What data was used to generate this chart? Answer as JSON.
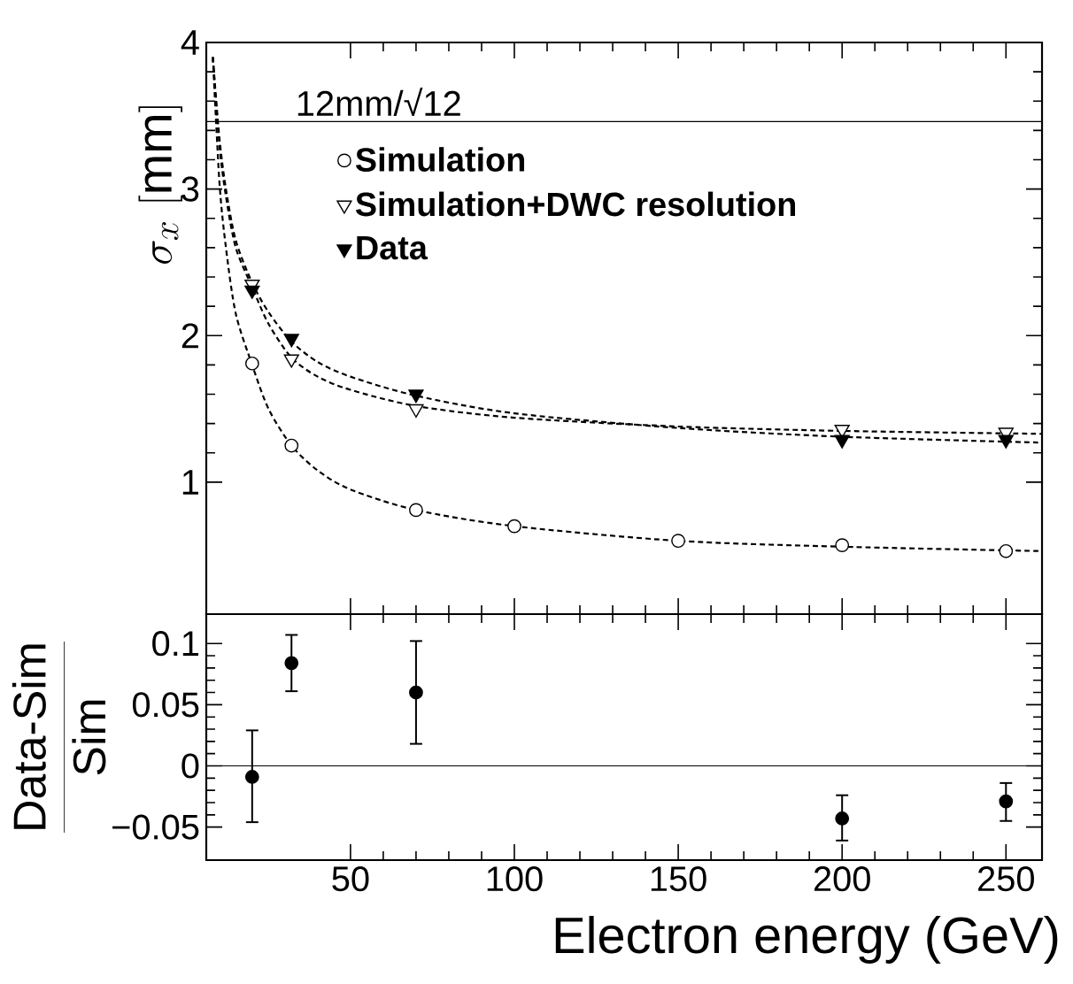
{
  "chart_data": [
    {
      "type": "scatter",
      "xlim": [
        6,
        261
      ],
      "ylim": [
        0.1,
        4
      ],
      "xticks": [
        50,
        100,
        150,
        200,
        250
      ],
      "yticks": [
        1,
        2,
        3,
        4
      ],
      "ylabel": "\\sigma_{x}\\ [\\mathrm{mm}]",
      "tick_labels": "y",
      "legend": "top",
      "ref_lines": [
        {
          "axis": "y",
          "value": 3.46,
          "label": "12mm/√12"
        }
      ],
      "series": [
        {
          "name": "Simulation",
          "marker": "circle",
          "color": "#ffffff",
          "x": [
            20,
            32,
            70,
            100,
            150,
            200,
            250
          ],
          "values": [
            1.81,
            1.25,
            0.81,
            0.7,
            0.6,
            0.57,
            0.53
          ]
        },
        {
          "name": "Simulation+DWC resolution",
          "marker": "triangle",
          "color": "#ffffff",
          "x": [
            20,
            32,
            70,
            200,
            250
          ],
          "values": [
            2.35,
            1.84,
            1.5,
            1.36,
            1.34
          ]
        },
        {
          "name": "Data",
          "marker": "triangle",
          "color": "#000000",
          "x": [
            20,
            32,
            70,
            200,
            250
          ],
          "values": [
            2.31,
            1.98,
            1.6,
            1.29,
            1.29
          ]
        },
        {
          "type": "line",
          "line_style": "dashed",
          "marker": "none",
          "color": "#000000",
          "x": [
            8,
            10,
            12,
            15,
            20,
            25,
            32,
            40,
            50,
            70,
            100,
            150,
            200,
            261
          ],
          "values": [
            3.9,
            3.05,
            2.6,
            2.15,
            1.8,
            1.5,
            1.25,
            1.08,
            0.95,
            0.81,
            0.7,
            0.6,
            0.56,
            0.53
          ]
        },
        {
          "type": "line",
          "line_style": "dashed",
          "marker": "none",
          "color": "#000000",
          "x": [
            8,
            10,
            12,
            15,
            20,
            25,
            32,
            40,
            50,
            70,
            100,
            150,
            200,
            261
          ],
          "values": [
            3.9,
            3.3,
            2.95,
            2.6,
            2.33,
            2.08,
            1.85,
            1.72,
            1.63,
            1.52,
            1.44,
            1.38,
            1.35,
            1.33
          ]
        },
        {
          "type": "line",
          "line_style": "dashed",
          "marker": "none",
          "color": "#000000",
          "x": [
            8,
            10,
            12,
            15,
            20,
            25,
            32,
            40,
            50,
            70,
            100,
            150,
            200,
            261
          ],
          "values": [
            3.9,
            3.35,
            3.0,
            2.65,
            2.36,
            2.16,
            1.96,
            1.82,
            1.72,
            1.59,
            1.47,
            1.37,
            1.31,
            1.27
          ]
        }
      ]
    },
    {
      "type": "scatter",
      "xlim": [
        6,
        261
      ],
      "ylim": [
        -0.077,
        0.124
      ],
      "xticks": [
        50,
        100,
        150,
        200,
        250
      ],
      "yticks": [
        {
          "value": -0.05,
          "label": "−0.05"
        },
        0,
        0.05,
        0.1
      ],
      "xlabel": "Electron energy (GeV)",
      "ylabel": "\\frac{\\mbox{Data-Sim}}{\\mbox{Sim}}",
      "ref_lines": [
        {
          "axis": "y",
          "value": 0
        }
      ],
      "series": [
        {
          "marker": "circle",
          "color": "#000000",
          "x": [
            20,
            32,
            70,
            200,
            250
          ],
          "values": [
            -0.009,
            0.084,
            0.06,
            -0.043,
            -0.029
          ],
          "errors": [
            [
              -0.046,
              0.029
            ],
            [
              0.061,
              0.107
            ],
            [
              0.018,
              0.102
            ],
            [
              -0.061,
              -0.024
            ],
            [
              -0.045,
              -0.014
            ]
          ]
        }
      ]
    }
  ]
}
